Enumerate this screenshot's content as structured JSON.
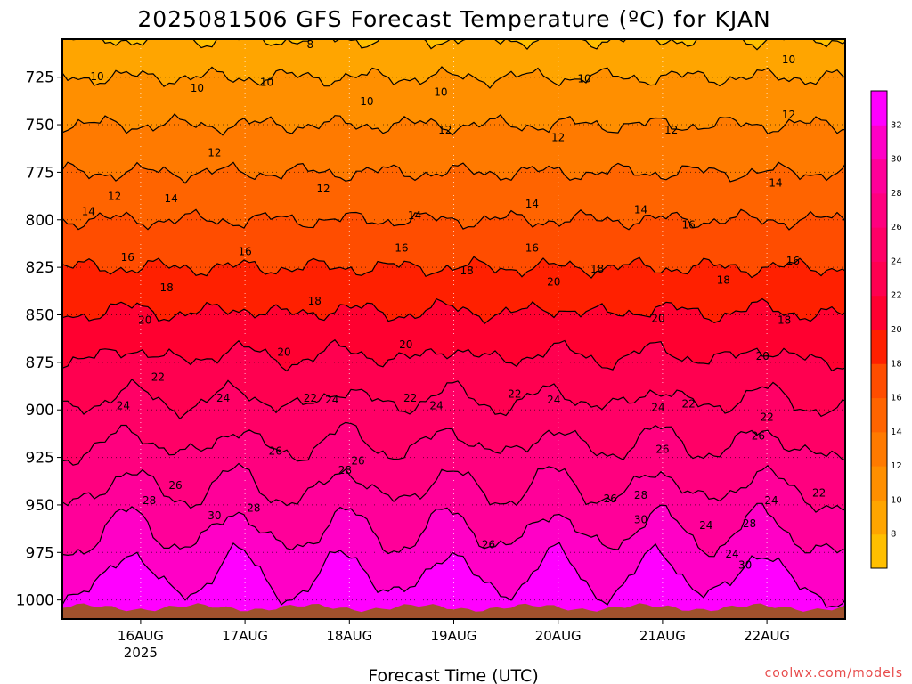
{
  "title": "2025081506 GFS Forecast Temperature (ºC) for KJAN",
  "credit": "coolwx.com/models",
  "colors": {
    "levels": [
      {
        "lo": 0,
        "hi": 8,
        "color": "#ffbf00"
      },
      {
        "lo": 8,
        "hi": 10,
        "color": "#ffa500"
      },
      {
        "lo": 10,
        "hi": 12,
        "color": "#ff8f00"
      },
      {
        "lo": 12,
        "hi": 14,
        "color": "#ff7a00"
      },
      {
        "lo": 14,
        "hi": 16,
        "color": "#ff6400"
      },
      {
        "lo": 16,
        "hi": 18,
        "color": "#ff4d00"
      },
      {
        "lo": 18,
        "hi": 20,
        "color": "#ff2000"
      },
      {
        "lo": 20,
        "hi": 22,
        "color": "#ff0030"
      },
      {
        "lo": 22,
        "hi": 24,
        "color": "#ff0050"
      },
      {
        "lo": 24,
        "hi": 26,
        "color": "#ff0066"
      },
      {
        "lo": 26,
        "hi": 28,
        "color": "#ff007f"
      },
      {
        "lo": 28,
        "hi": 30,
        "color": "#ff0099"
      },
      {
        "lo": 30,
        "hi": 32,
        "color": "#ff00c6"
      },
      {
        "lo": 32,
        "hi": 40,
        "color": "#ff00ff"
      }
    ],
    "ground": "#a0522d",
    "frame": "#000000"
  },
  "chart_data": {
    "type": "heatmap",
    "title": "2025081506 GFS Forecast Temperature (ºC) for KJAN",
    "xlabel": "Forecast Time (UTC)",
    "ylabel": "",
    "x_ticks": [
      {
        "label": "16AUG",
        "sublabel": "2025",
        "hours": 18
      },
      {
        "label": "17AUG",
        "sublabel": "",
        "hours": 42
      },
      {
        "label": "18AUG",
        "sublabel": "",
        "hours": 66
      },
      {
        "label": "19AUG",
        "sublabel": "",
        "hours": 90
      },
      {
        "label": "20AUG",
        "sublabel": "",
        "hours": 114
      },
      {
        "label": "21AUG",
        "sublabel": "",
        "hours": 138
      },
      {
        "label": "22AUG",
        "sublabel": "",
        "hours": 162
      }
    ],
    "xlim_hours": [
      0,
      180
    ],
    "y_ticks": [
      725,
      750,
      775,
      800,
      825,
      850,
      875,
      900,
      925,
      950,
      975,
      1000
    ],
    "ylim_hPa": [
      705,
      1010
    ],
    "pressure_levels": [
      705,
      725,
      750,
      775,
      800,
      825,
      850,
      875,
      900,
      925,
      950,
      975,
      1000,
      1010
    ],
    "temperature_profile": [
      8,
      10,
      12,
      14,
      16,
      18,
      20,
      22,
      24,
      26,
      28,
      30,
      32,
      32
    ],
    "contour_levels": [
      8,
      10,
      12,
      14,
      16,
      18,
      20,
      22,
      24,
      26,
      28,
      30,
      32
    ],
    "colorbar_labels": [
      "8",
      "10",
      "12",
      "14",
      "16",
      "18",
      "20",
      "22",
      "24",
      "26",
      "28",
      "30",
      "32"
    ],
    "contour_labels": [
      {
        "text": "8",
        "hours": 57,
        "hPa": 708
      },
      {
        "text": "10",
        "hours": 8,
        "hPa": 725
      },
      {
        "text": "10",
        "hours": 31,
        "hPa": 731
      },
      {
        "text": "10",
        "hours": 47,
        "hPa": 728
      },
      {
        "text": "10",
        "hours": 70,
        "hPa": 738
      },
      {
        "text": "10",
        "hours": 87,
        "hPa": 733
      },
      {
        "text": "10",
        "hours": 120,
        "hPa": 726
      },
      {
        "text": "10",
        "hours": 167,
        "hPa": 716
      },
      {
        "text": "12",
        "hours": 35,
        "hPa": 765
      },
      {
        "text": "12",
        "hours": 60,
        "hPa": 784
      },
      {
        "text": "12",
        "hours": 88,
        "hPa": 753
      },
      {
        "text": "12",
        "hours": 114,
        "hPa": 757
      },
      {
        "text": "12",
        "hours": 140,
        "hPa": 753
      },
      {
        "text": "12",
        "hours": 167,
        "hPa": 745
      },
      {
        "text": "12",
        "hours": 12,
        "hPa": 788
      },
      {
        "text": "14",
        "hours": 6,
        "hPa": 796
      },
      {
        "text": "14",
        "hours": 25,
        "hPa": 789
      },
      {
        "text": "14",
        "hours": 81,
        "hPa": 798
      },
      {
        "text": "14",
        "hours": 108,
        "hPa": 792
      },
      {
        "text": "14",
        "hours": 133,
        "hPa": 795
      },
      {
        "text": "14",
        "hours": 164,
        "hPa": 781
      },
      {
        "text": "16",
        "hours": 15,
        "hPa": 820
      },
      {
        "text": "16",
        "hours": 42,
        "hPa": 817
      },
      {
        "text": "16",
        "hours": 78,
        "hPa": 815
      },
      {
        "text": "16",
        "hours": 108,
        "hPa": 815
      },
      {
        "text": "16",
        "hours": 144,
        "hPa": 803
      },
      {
        "text": "16",
        "hours": 168,
        "hPa": 822
      },
      {
        "text": "18",
        "hours": 24,
        "hPa": 836
      },
      {
        "text": "18",
        "hours": 58,
        "hPa": 843
      },
      {
        "text": "18",
        "hours": 93,
        "hPa": 827
      },
      {
        "text": "18",
        "hours": 123,
        "hPa": 826
      },
      {
        "text": "18",
        "hours": 152,
        "hPa": 832
      },
      {
        "text": "18",
        "hours": 166,
        "hPa": 853
      },
      {
        "text": "20",
        "hours": 19,
        "hPa": 853
      },
      {
        "text": "20",
        "hours": 51,
        "hPa": 870
      },
      {
        "text": "20",
        "hours": 79,
        "hPa": 866
      },
      {
        "text": "20",
        "hours": 113,
        "hPa": 833
      },
      {
        "text": "20",
        "hours": 137,
        "hPa": 852
      },
      {
        "text": "20",
        "hours": 161,
        "hPa": 872
      },
      {
        "text": "22",
        "hours": 22,
        "hPa": 883
      },
      {
        "text": "22",
        "hours": 57,
        "hPa": 894
      },
      {
        "text": "22",
        "hours": 80,
        "hPa": 894
      },
      {
        "text": "22",
        "hours": 104,
        "hPa": 892
      },
      {
        "text": "22",
        "hours": 144,
        "hPa": 897
      },
      {
        "text": "22",
        "hours": 162,
        "hPa": 904
      },
      {
        "text": "22",
        "hours": 174,
        "hPa": 944
      },
      {
        "text": "24",
        "hours": 14,
        "hPa": 898
      },
      {
        "text": "24",
        "hours": 37,
        "hPa": 894
      },
      {
        "text": "24",
        "hours": 62,
        "hPa": 895
      },
      {
        "text": "24",
        "hours": 86,
        "hPa": 898
      },
      {
        "text": "24",
        "hours": 113,
        "hPa": 895
      },
      {
        "text": "24",
        "hours": 137,
        "hPa": 899
      },
      {
        "text": "24",
        "hours": 148,
        "hPa": 961
      },
      {
        "text": "24",
        "hours": 154,
        "hPa": 976
      },
      {
        "text": "24",
        "hours": 163,
        "hPa": 948
      },
      {
        "text": "26",
        "hours": 26,
        "hPa": 940
      },
      {
        "text": "26",
        "hours": 49,
        "hPa": 922
      },
      {
        "text": "26",
        "hours": 68,
        "hPa": 927
      },
      {
        "text": "26",
        "hours": 98,
        "hPa": 971
      },
      {
        "text": "26",
        "hours": 126,
        "hPa": 947
      },
      {
        "text": "26",
        "hours": 138,
        "hPa": 921
      },
      {
        "text": "26",
        "hours": 160,
        "hPa": 914
      },
      {
        "text": "28",
        "hours": 20,
        "hPa": 948
      },
      {
        "text": "28",
        "hours": 44,
        "hPa": 952
      },
      {
        "text": "28",
        "hours": 65,
        "hPa": 932
      },
      {
        "text": "28",
        "hours": 133,
        "hPa": 945
      },
      {
        "text": "28",
        "hours": 158,
        "hPa": 960
      },
      {
        "text": "30",
        "hours": 35,
        "hPa": 956
      },
      {
        "text": "30",
        "hours": 133,
        "hPa": 958
      },
      {
        "text": "30",
        "hours": 157,
        "hPa": 982
      }
    ]
  }
}
